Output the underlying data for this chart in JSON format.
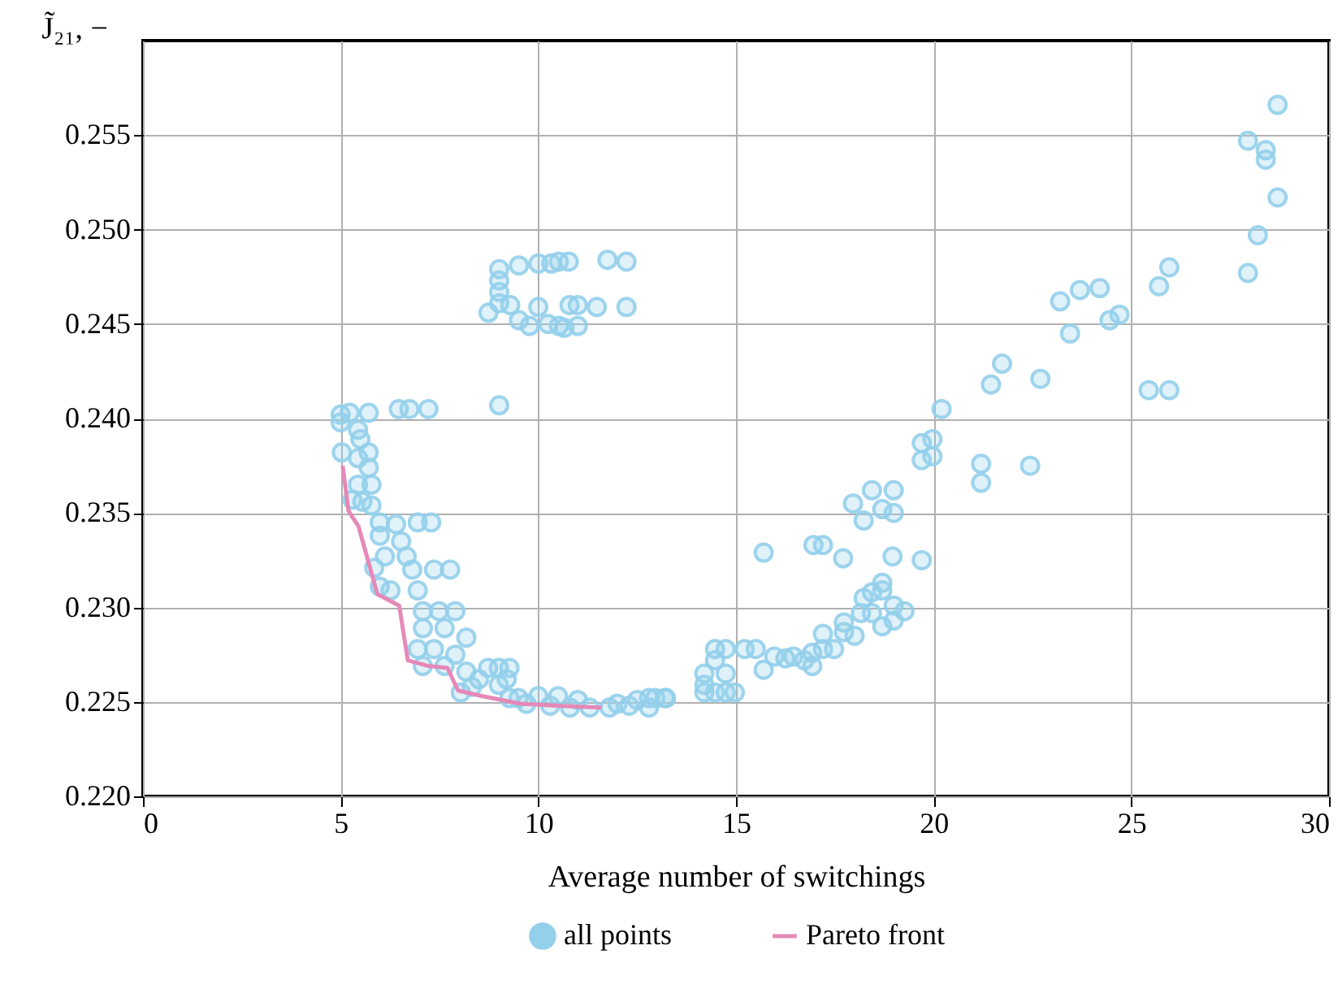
{
  "chart_data": {
    "type": "scatter",
    "xlabel": "Average number of switchings",
    "ylabel": "J̃₂₁, −",
    "xlim": [
      0,
      30
    ],
    "xticks": [
      0,
      5,
      10,
      15,
      20,
      25,
      30
    ],
    "ylim": [
      0.22,
      0.26
    ],
    "yticks": [
      {
        "value": 0.22,
        "label": "0.220"
      },
      0.225,
      {
        "value": 0.23,
        "label": "0.230"
      },
      0.235,
      {
        "value": 0.24,
        "label": "0.240"
      },
      0.245,
      {
        "value": 0.25,
        "label": "0.250"
      },
      0.255
    ],
    "grid": true,
    "legend": "bottom",
    "series": [
      {
        "name": "all points",
        "color": "#94cfeb",
        "marker": "circle",
        "x": [
          28.7,
          27.95,
          28.4,
          28.4,
          28.7,
          28.2,
          27.95,
          25.96,
          25.7,
          24.2,
          23.7,
          23.2,
          23.45,
          24.45,
          24.7,
          21.73,
          21.45,
          22.7,
          25.44,
          25.96,
          20.2,
          19.97,
          19.7,
          19.7,
          19.97,
          21.2,
          21.2,
          22.44,
          19.7,
          15.7,
          16.96,
          17.2,
          17.71,
          18.96,
          17.96,
          18.23,
          18.7,
          18.99,
          18.99,
          18.44,
          18.23,
          18.44,
          18.7,
          18.7,
          18.99,
          19.26,
          18.16,
          18.44,
          18.7,
          18.99,
          17.73,
          18.0,
          17.73,
          17.48,
          17.2,
          17.2,
          16.93,
          16.93,
          16.73,
          16.45,
          16.25,
          15.97,
          15.7,
          15.5,
          15.22,
          14.74,
          14.47,
          14.47,
          14.2,
          14.2,
          14.47,
          14.74,
          14.74,
          14.97,
          14.2,
          12.96,
          13.23,
          12.8,
          5.0,
          5.23,
          5.71,
          6.47,
          6.74,
          7.22,
          5.0,
          5.03,
          5.44,
          5.5,
          5.71,
          5.44,
          5.71,
          5.78,
          5.44,
          5.3,
          5.55,
          5.78,
          5.99,
          6.4,
          6.95,
          7.29,
          5.99,
          6.53,
          6.12,
          6.67,
          5.85,
          6.81,
          7.36,
          7.77,
          6.26,
          6.95,
          5.99,
          7.08,
          7.49,
          7.9,
          7.08,
          7.63,
          8.18,
          6.95,
          7.36,
          7.9,
          7.08,
          7.63,
          8.18,
          8.73,
          9.27,
          8.32,
          9.0,
          8.04,
          9.27,
          9.5,
          10.0,
          10.5,
          11.0,
          9.7,
          10.3,
          10.8,
          11.3,
          11.8,
          12.3,
          12.5,
          12.0,
          13.2,
          12.8,
          9.2,
          9.0,
          8.5,
          9.01,
          9.01,
          9.01,
          9.01,
          8.74,
          9.51,
          10.0,
          10.33,
          10.52,
          10.77,
          11.75,
          12.23,
          9.29,
          9.51,
          9.78,
          10.0,
          10.25,
          10.52,
          10.79,
          11.0,
          11.0,
          11.48,
          12.23,
          10.66,
          9.01
        ],
        "values": [
          0.2566,
          0.2547,
          0.2542,
          0.2537,
          0.2517,
          0.2497,
          0.2477,
          0.248,
          0.247,
          0.2469,
          0.2468,
          0.2462,
          0.2445,
          0.2452,
          0.2455,
          0.2429,
          0.2418,
          0.2421,
          0.2415,
          0.2415,
          0.2405,
          0.2389,
          0.2387,
          0.2378,
          0.238,
          0.2376,
          0.2366,
          0.2375,
          0.2325,
          0.2329,
          0.2333,
          0.2333,
          0.2326,
          0.2327,
          0.2355,
          0.2346,
          0.2352,
          0.235,
          0.2362,
          0.2362,
          0.2305,
          0.2308,
          0.2313,
          0.2309,
          0.2301,
          0.2298,
          0.2297,
          0.2297,
          0.229,
          0.2293,
          0.2292,
          0.2285,
          0.2287,
          0.2278,
          0.2286,
          0.2278,
          0.2276,
          0.2269,
          0.2272,
          0.2274,
          0.2273,
          0.2274,
          0.2267,
          0.2278,
          0.2278,
          0.2278,
          0.2278,
          0.2272,
          0.2265,
          0.2259,
          0.2255,
          0.2265,
          0.2255,
          0.2255,
          0.2255,
          0.2252,
          0.2252,
          0.2247,
          0.2402,
          0.2403,
          0.2403,
          0.2405,
          0.2405,
          0.2405,
          0.2398,
          0.2382,
          0.2394,
          0.2389,
          0.2382,
          0.2379,
          0.2374,
          0.2365,
          0.2365,
          0.2357,
          0.2356,
          0.2354,
          0.2345,
          0.2344,
          0.2345,
          0.2345,
          0.2338,
          0.2335,
          0.2327,
          0.2327,
          0.2321,
          0.232,
          0.232,
          0.232,
          0.2309,
          0.2309,
          0.2311,
          0.2298,
          0.2298,
          0.2298,
          0.2289,
          0.2289,
          0.2284,
          0.2278,
          0.2278,
          0.2275,
          0.2269,
          0.2269,
          0.2266,
          0.2268,
          0.2268,
          0.2258,
          0.2259,
          0.2255,
          0.2252,
          0.2252,
          0.2253,
          0.2253,
          0.2251,
          0.2249,
          0.2248,
          0.2247,
          0.2247,
          0.2247,
          0.2248,
          0.2251,
          0.2249,
          0.2252,
          0.2252,
          0.2262,
          0.2268,
          0.2262,
          0.2479,
          0.2473,
          0.2467,
          0.2461,
          0.2456,
          0.2481,
          0.2482,
          0.2482,
          0.2483,
          0.2483,
          0.2484,
          0.2483,
          0.246,
          0.2452,
          0.2449,
          0.2459,
          0.245,
          0.2449,
          0.246,
          0.2449,
          0.246,
          0.2459,
          0.2459,
          0.2448,
          0.2407
        ]
      },
      {
        "name": "Pareto front",
        "type": "line",
        "color": "#e589b8",
        "marker": "none",
        "x": [
          5.05,
          5.2,
          5.45,
          5.93,
          6.48,
          6.7,
          7.22,
          7.7,
          7.97,
          8.59,
          9.55,
          10.5,
          11.6
        ],
        "values": [
          0.2375,
          0.2351,
          0.2343,
          0.2307,
          0.2301,
          0.2272,
          0.2269,
          0.2268,
          0.2256,
          0.2253,
          0.2249,
          0.2248,
          0.2247
        ]
      }
    ]
  }
}
